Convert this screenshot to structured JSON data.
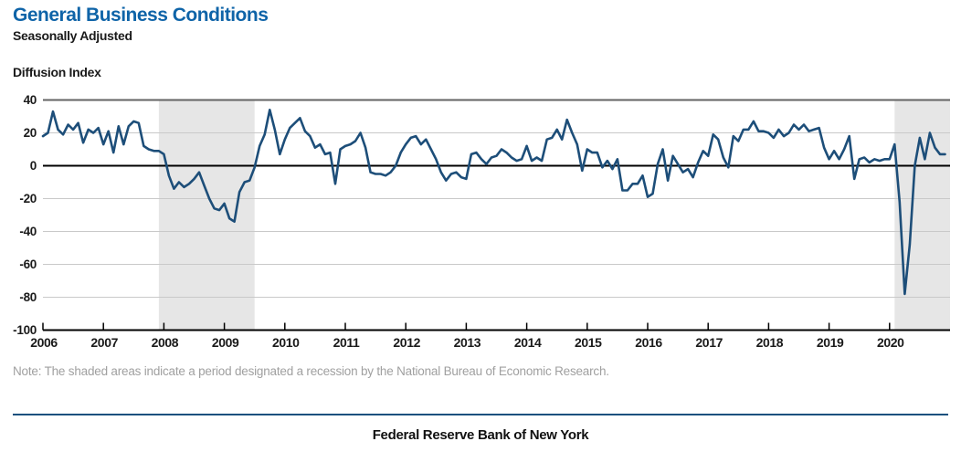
{
  "header": {
    "title": "General Business Conditions",
    "subtitle": "Seasonally Adjusted"
  },
  "note": "Note: The shaded areas indicate a period designated a recession by the National Bureau of Economic Research.",
  "footer": "Federal Reserve Bank of New York",
  "colors": {
    "title_blue": "#0f64a8",
    "line": "#1d4e79",
    "recession_shading": "#e6e6e6",
    "gridline": "#c9c9c9",
    "chart_top_border": "#636363",
    "zero_line": "#000000",
    "axis": "#000000",
    "note_text": "#a0a0a0",
    "footer_rule": "#17507e"
  },
  "chart_data": {
    "type": "line",
    "title": "General Business Conditions",
    "subtitle": "Seasonally Adjusted",
    "ylabel": "Diffusion Index",
    "ylim": [
      -100,
      40
    ],
    "y_ticks": [
      40,
      20,
      0,
      -20,
      -40,
      -60,
      -80,
      -100
    ],
    "x_tick_labels": [
      "2006",
      "2007",
      "2008",
      "2009",
      "2010",
      "2011",
      "2012",
      "2013",
      "2014",
      "2015",
      "2016",
      "2017",
      "2018",
      "2019",
      "2020"
    ],
    "frequency": "monthly",
    "start": "2006-01",
    "end": "2020-12",
    "grid": true,
    "legend": "none",
    "recession_bands": [
      {
        "start": "2007-12",
        "end": "2009-06"
      },
      {
        "start": "2020-02",
        "end": "2020-12"
      }
    ],
    "series": [
      {
        "name": "General Business Conditions (diffusion index, SA)",
        "values": [
          18,
          20,
          33,
          22,
          19,
          25,
          22,
          26,
          14,
          22,
          20,
          23,
          13,
          21,
          8,
          24,
          13,
          24,
          27,
          26,
          12,
          10,
          9,
          9,
          7,
          -6,
          -14,
          -10,
          -13,
          -11,
          -8,
          -4,
          -12,
          -20,
          -26,
          -27,
          -23,
          -32,
          -34,
          -16,
          -10,
          -9,
          -1,
          12,
          19,
          34,
          22,
          7,
          16,
          23,
          26,
          29,
          21,
          18,
          11,
          13,
          7,
          8,
          -11,
          10,
          12,
          13,
          15,
          20,
          11,
          -4,
          -5,
          -5,
          -6,
          -4,
          0,
          8,
          13,
          17,
          18,
          13,
          16,
          10,
          4,
          -4,
          -9,
          -5,
          -4,
          -7,
          -8,
          7,
          8,
          4,
          1,
          5,
          6,
          10,
          8,
          5,
          3,
          4,
          12,
          3,
          5,
          3,
          16,
          17,
          22,
          16,
          28,
          20,
          13,
          -3,
          10,
          8,
          8,
          -1,
          3,
          -2,
          4,
          -15,
          -15,
          -11,
          -11,
          -6,
          -19,
          -17,
          1,
          10,
          -9,
          6,
          1,
          -4,
          -2,
          -7,
          2,
          9,
          6,
          19,
          16,
          5,
          -1,
          18,
          15,
          22,
          22,
          27,
          21,
          21,
          20,
          17,
          22,
          18,
          20,
          25,
          22,
          25,
          21,
          22,
          23,
          11,
          4,
          9,
          4,
          10,
          18,
          -8,
          4,
          5,
          2,
          4,
          3,
          4,
          4,
          13,
          -22,
          -78,
          -48,
          0,
          17,
          4,
          20,
          11,
          7,
          7
        ]
      }
    ]
  }
}
